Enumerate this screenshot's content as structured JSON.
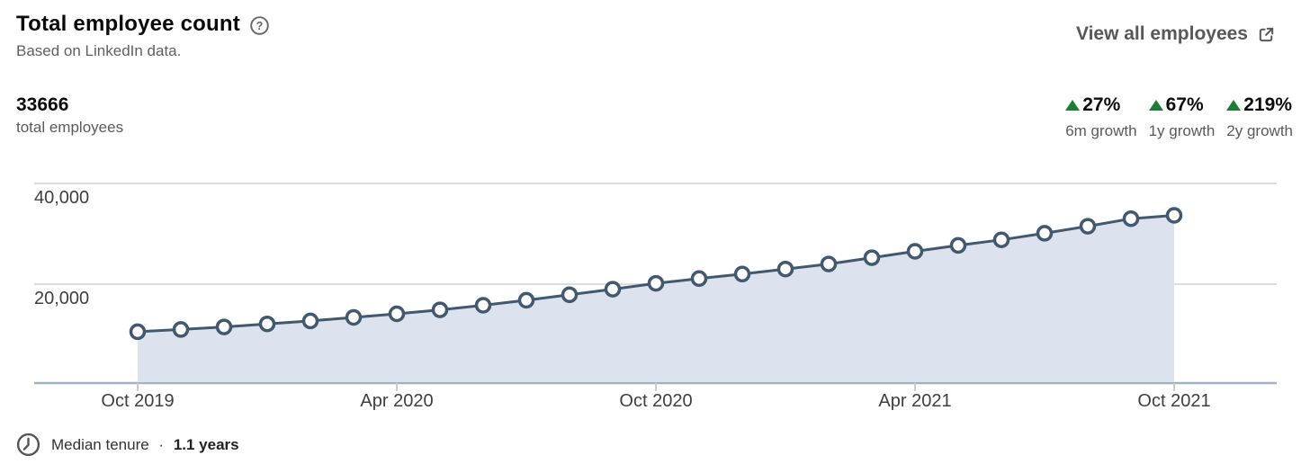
{
  "header": {
    "title": "Total employee count",
    "help_icon": "question-mark-circle-icon",
    "subtitle": "Based on LinkedIn data.",
    "view_all_label": "View all employees"
  },
  "stats": {
    "total_value": "33666",
    "total_label": "total employees",
    "growth_color": "#1e7d34",
    "growth": [
      {
        "direction": "up",
        "value": "27%",
        "label": "6m growth"
      },
      {
        "direction": "up",
        "value": "67%",
        "label": "1y growth"
      },
      {
        "direction": "up",
        "value": "219%",
        "label": "2y growth"
      }
    ]
  },
  "chart_data": {
    "type": "area",
    "title": "Total employee count over time",
    "x": [
      "Oct 2019",
      "Nov 2019",
      "Dec 2019",
      "Jan 2020",
      "Feb 2020",
      "Mar 2020",
      "Apr 2020",
      "May 2020",
      "Jun 2020",
      "Jul 2020",
      "Aug 2020",
      "Sep 2020",
      "Oct 2020",
      "Nov 2020",
      "Dec 2020",
      "Jan 2021",
      "Feb 2021",
      "Mar 2021",
      "Apr 2021",
      "May 2021",
      "Jun 2021",
      "Jul 2021",
      "Aug 2021",
      "Sep 2021",
      "Oct 2021"
    ],
    "values": [
      10554,
      11000,
      11500,
      12100,
      12700,
      13400,
      14100,
      14900,
      15800,
      16800,
      17900,
      19000,
      20159,
      21100,
      22000,
      23000,
      24000,
      25250,
      26509,
      27700,
      28800,
      30100,
      31500,
      33000,
      33666
    ],
    "x_tick_labels": [
      "Oct 2019",
      "Apr 2020",
      "Oct 2020",
      "Apr 2021",
      "Oct 2021"
    ],
    "x_tick_indices": [
      0,
      6,
      12,
      18,
      24
    ],
    "y_ticks": [
      {
        "value": 40000,
        "label": "40,000"
      },
      {
        "value": 20000,
        "label": "20,000"
      }
    ],
    "ylim": [
      0,
      42000
    ],
    "grid": "horizontal",
    "legend": "none",
    "line_color": "#41586f",
    "fill_color": "#dce3ee",
    "marker_fill": "#ffffff",
    "grid_color": "#dedede",
    "axis_color": "#a3b1c2",
    "tick_color": "#cccccc",
    "axis_label_color": "#3f3f3f"
  },
  "footer": {
    "clock_icon": "clock-icon",
    "label": "Median tenure",
    "separator": "·",
    "value": "1.1 years"
  }
}
